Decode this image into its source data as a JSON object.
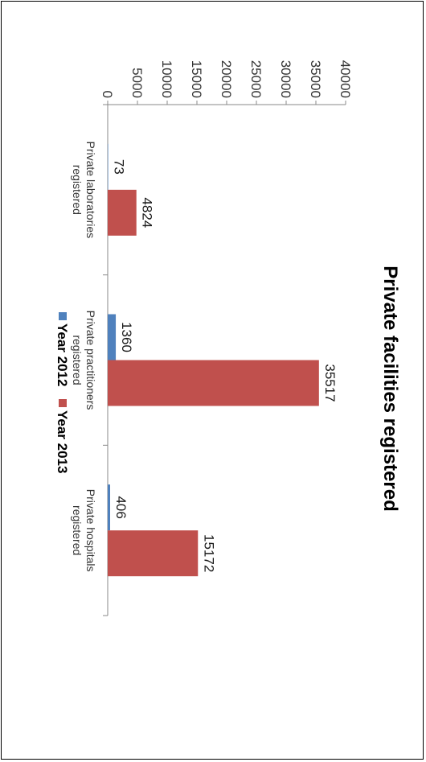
{
  "chart_data": {
    "type": "bar",
    "orientation": "vertical, figure rotated 90 degrees clockwise",
    "title": "Private facilities registered",
    "categories": [
      [
        "Private laboratories",
        "registered"
      ],
      [
        "Private practitioners",
        "registered"
      ],
      [
        "Private hospitals",
        "registered"
      ]
    ],
    "series": [
      {
        "name": "Year 2012",
        "values": [
          73,
          1360,
          406
        ],
        "color": "#4f81bd"
      },
      {
        "name": "Year 2013",
        "values": [
          4824,
          35517,
          15172
        ],
        "color": "#c0504d"
      }
    ],
    "ylim": [
      0,
      40000
    ],
    "yticks": [
      0,
      5000,
      10000,
      15000,
      20000,
      25000,
      30000,
      35000,
      40000
    ],
    "grid": false,
    "legend": "bottom"
  }
}
